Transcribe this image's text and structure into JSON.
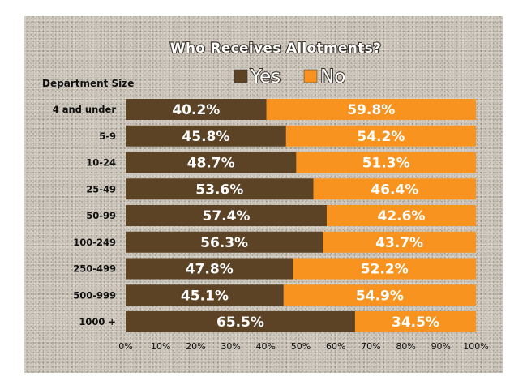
{
  "chart_data": {
    "type": "bar",
    "orientation": "horizontal",
    "stacked": true,
    "title": "Who Receives Allotments?",
    "ylabel": "Department Size",
    "xlabel": "",
    "categories": [
      "4 and under",
      "5-9",
      "10-24",
      "25-49",
      "50-99",
      "100-249",
      "250-499",
      "500-999",
      "1000 +"
    ],
    "series": [
      {
        "name": "Yes",
        "color": "#5c4326",
        "values": [
          40.2,
          45.8,
          48.7,
          53.6,
          57.4,
          56.3,
          47.8,
          45.1,
          65.5
        ]
      },
      {
        "name": "No",
        "color": "#f7931e",
        "values": [
          59.8,
          54.2,
          51.3,
          46.4,
          42.6,
          43.7,
          52.2,
          54.9,
          34.5
        ]
      }
    ],
    "xlim": [
      0,
      100
    ],
    "xticks": [
      "0%",
      "10%",
      "20%",
      "30%",
      "40%",
      "50%",
      "60%",
      "70%",
      "80%",
      "90%",
      "100%"
    ],
    "legend": "top",
    "grid": false
  }
}
